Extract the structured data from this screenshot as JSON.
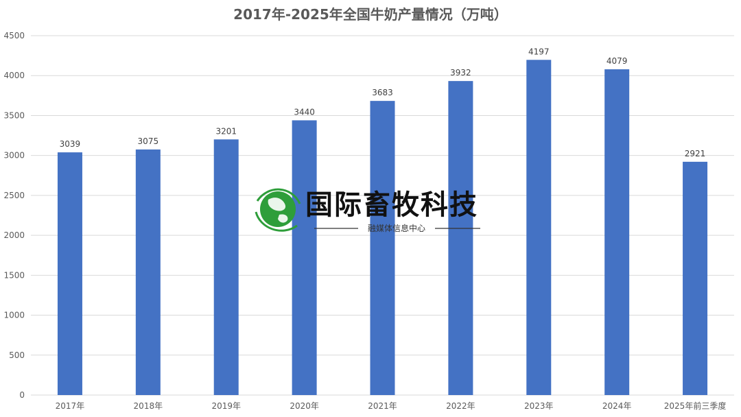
{
  "chart_data": {
    "type": "bar",
    "title": "2017年-2025年全国牛奶产量情况（万吨）",
    "xlabel": "",
    "ylabel": "",
    "categories": [
      "2017年",
      "2018年",
      "2019年",
      "2020年",
      "2021年",
      "2022年",
      "2023年",
      "2024年",
      "2025年前三季度"
    ],
    "values": [
      3039,
      3075,
      3201,
      3440,
      3683,
      3932,
      4197,
      4079,
      2921
    ],
    "ylim": [
      0,
      4500
    ],
    "yticks": [
      0,
      500,
      1000,
      1500,
      2000,
      2500,
      3000,
      3500,
      4000,
      4500
    ],
    "grid": true,
    "legend": "none",
    "bar_color": "#4472C4",
    "data_labels": true
  },
  "watermark": {
    "name": "国际畜牧科技",
    "subtitle": "融媒体信息中心",
    "logo": "green-globe-logo",
    "logo_color": "#2e9e3a"
  }
}
